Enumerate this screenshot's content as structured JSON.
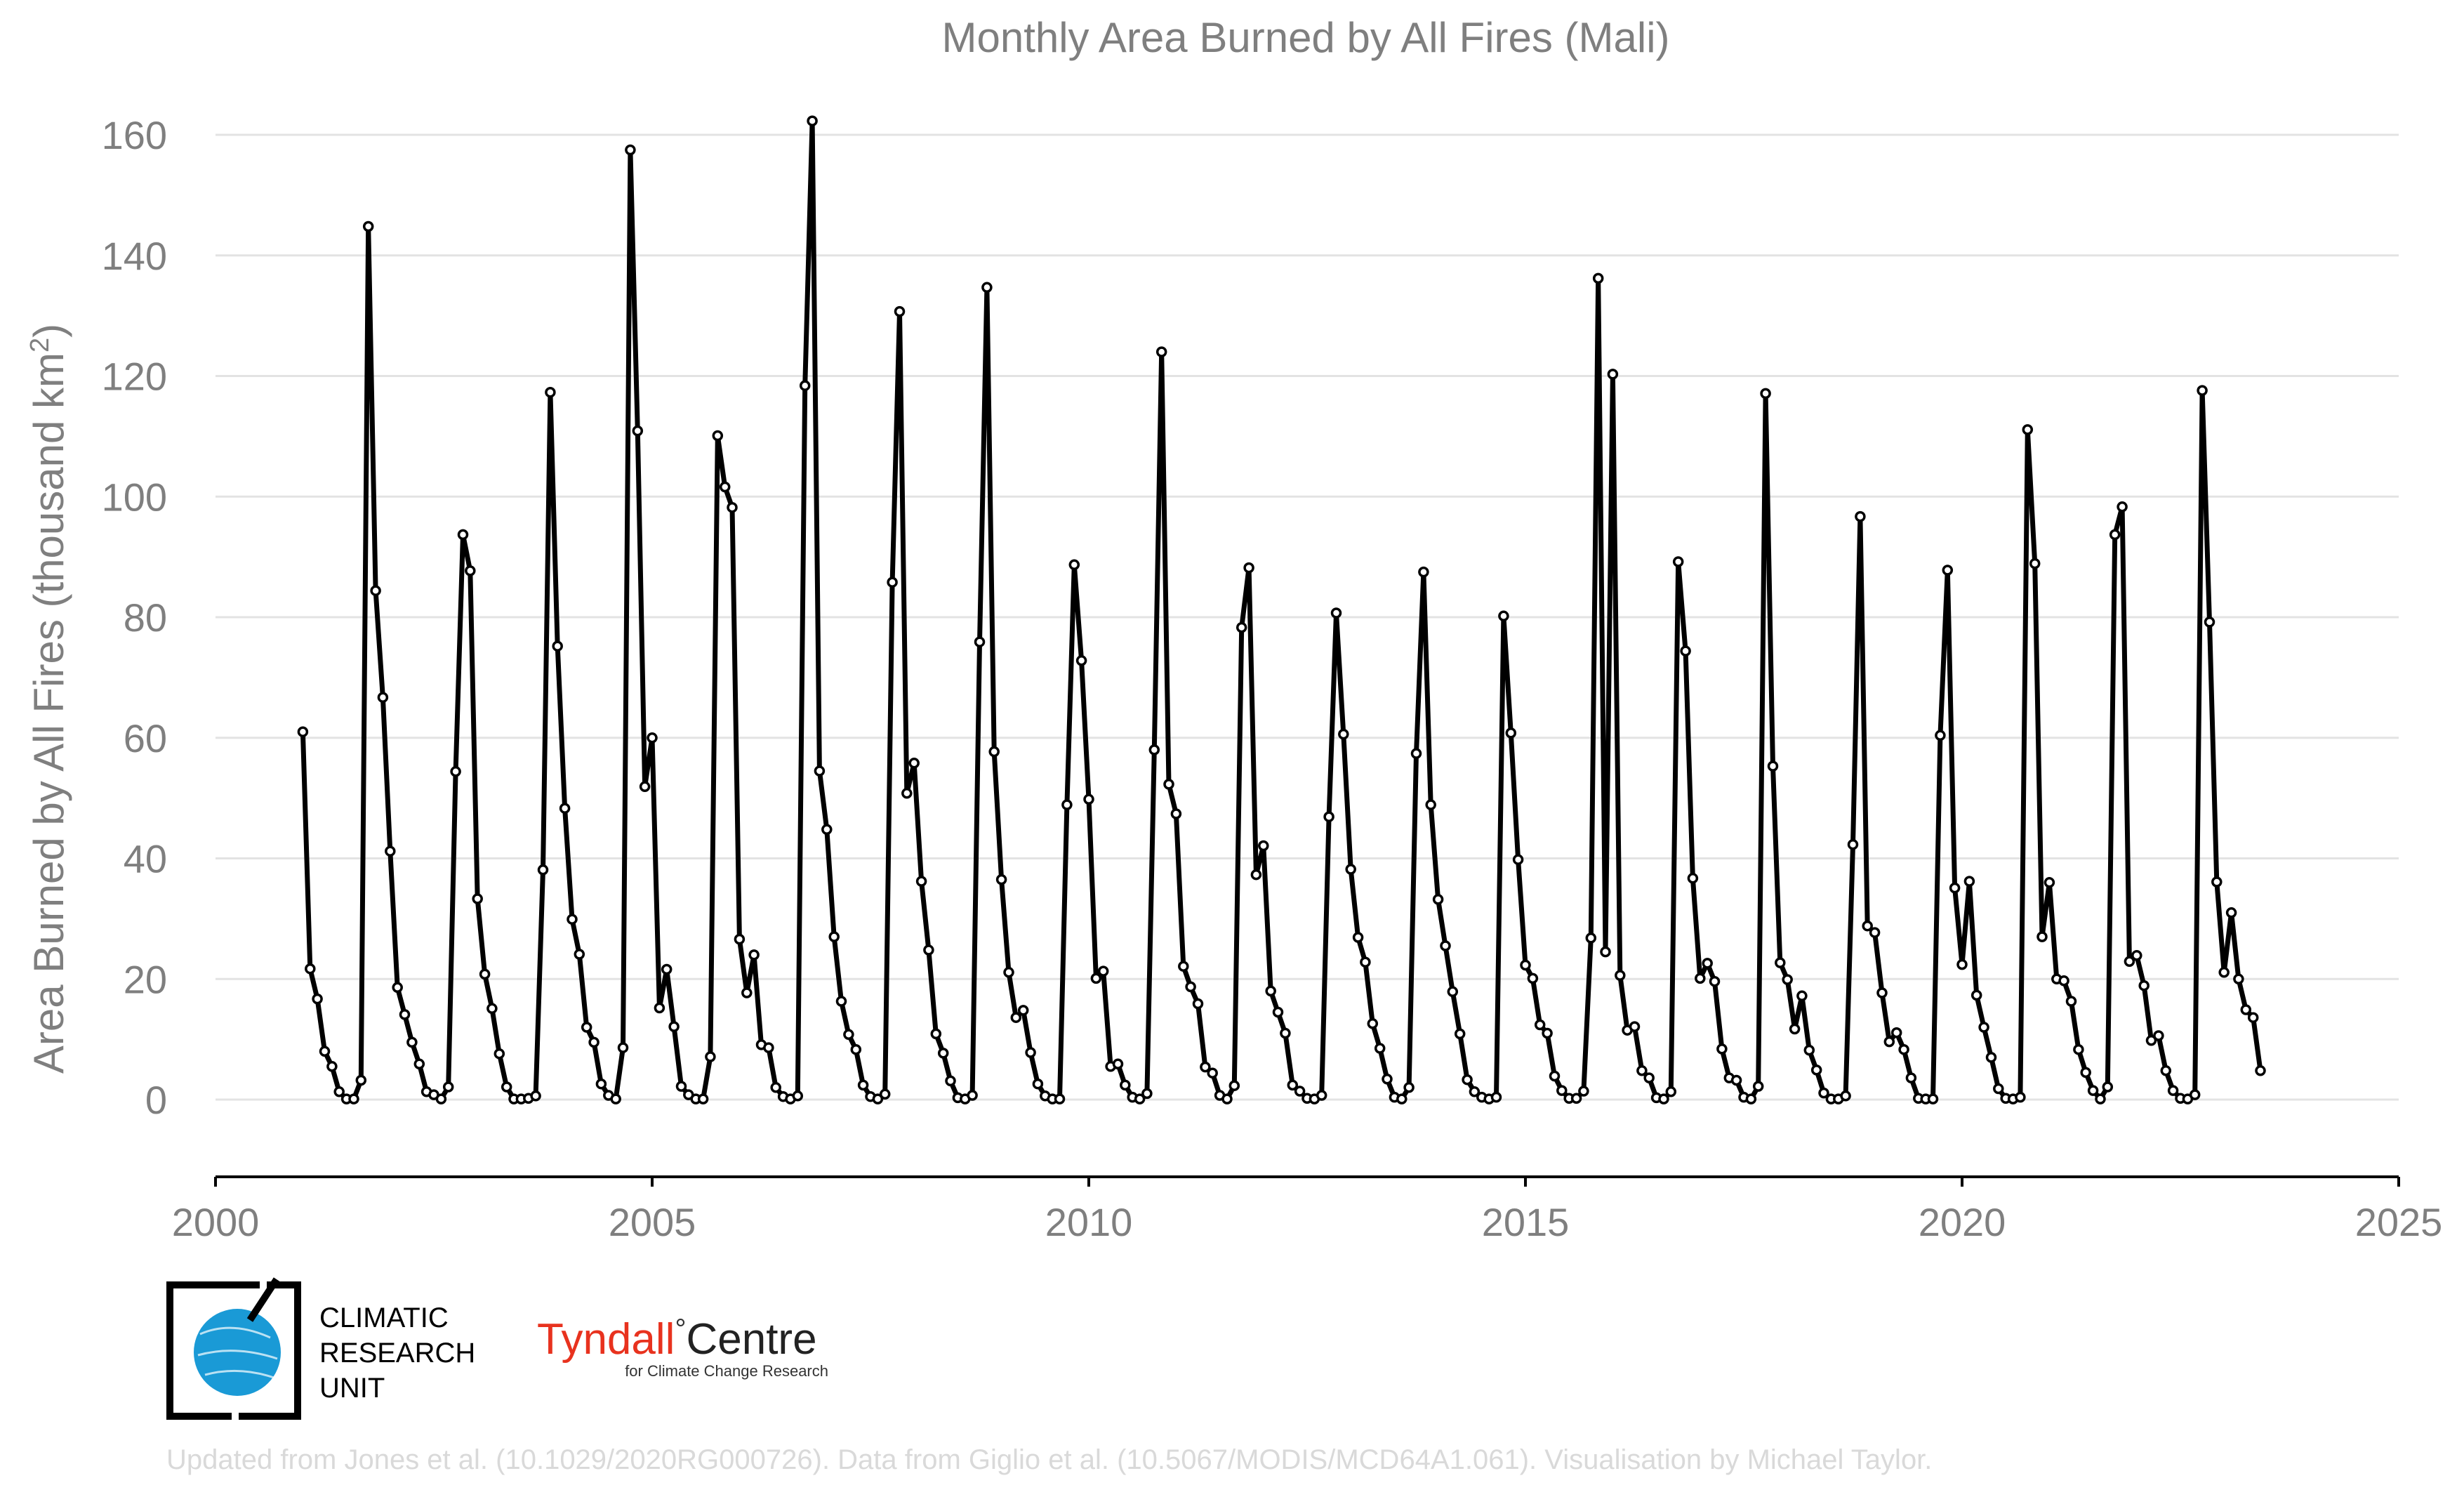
{
  "chart_data": {
    "type": "line",
    "title": "Monthly Area Burned by All Fires (Mali)",
    "xlabel": "",
    "ylabel": "Area Burned by All Fires (thousand km",
    "ylabel_sup": "2",
    "ylabel_end": ")",
    "xlim": [
      2000,
      2025
    ],
    "ylim": [
      -13,
      165
    ],
    "x_ticks": [
      2000,
      2005,
      2010,
      2015,
      2020,
      2025
    ],
    "y_ticks": [
      0,
      20,
      40,
      60,
      80,
      100,
      120,
      140,
      160
    ],
    "grid": "horizontal",
    "legend": "none",
    "series": [
      {
        "x_start": "2001-01",
        "frequency": "monthly",
        "color": "#000000",
        "values": [
          61,
          21.7,
          16.7,
          8,
          5.5,
          1.3,
          0.1,
          0.1,
          3.2,
          144.8,
          84.4,
          66.7,
          41.2,
          18.6,
          14.1,
          9.5,
          5.9,
          1.3,
          0.8,
          0.1,
          2.1,
          54.4,
          93.7,
          87.7,
          33.3,
          20.8,
          15.1,
          7.6,
          2.1,
          0.1,
          0.1,
          0.2,
          0.6,
          38.1,
          117.3,
          75.2,
          48.3,
          29.9,
          24.1,
          12,
          9.5,
          2.6,
          0.7,
          0.1,
          8.6,
          157.5,
          110.9,
          51.9,
          60,
          15.2,
          21.6,
          12.1,
          2.2,
          0.8,
          0.1,
          0.1,
          7.1,
          110.1,
          101.6,
          98.2,
          26.6,
          17.7,
          24,
          9.1,
          8.6,
          2,
          0.5,
          0.1,
          0.6,
          118.4,
          162.3,
          54.5,
          44.8,
          27,
          16.3,
          10.8,
          8.3,
          2.4,
          0.5,
          0.1,
          0.9,
          85.8,
          130.7,
          50.8,
          55.8,
          36.2,
          24.8,
          10.9,
          7.7,
          3.1,
          0.3,
          0.1,
          0.7,
          75.9,
          134.7,
          57.7,
          36.5,
          21.1,
          13.6,
          14.8,
          7.8,
          2.6,
          0.6,
          0.1,
          0.1,
          48.9,
          88.7,
          72.8,
          49.8,
          20.1,
          21.3,
          5.5,
          5.9,
          2.4,
          0.4,
          0.1,
          1,
          58,
          124,
          52.3,
          47.4,
          22.1,
          18.7,
          15.9,
          5.4,
          4.4,
          0.7,
          0.1,
          2.3,
          78.3,
          88.2,
          37.3,
          42.1,
          18,
          14.5,
          11,
          2.4,
          1.4,
          0.2,
          0.1,
          0.7,
          46.9,
          80.7,
          60.6,
          38.2,
          26.9,
          22.8,
          12.6,
          8.5,
          3.4,
          0.4,
          0.1,
          2,
          57.4,
          87.5,
          48.9,
          33.2,
          25.5,
          17.9,
          10.9,
          3.3,
          1.3,
          0.4,
          0.1,
          0.4,
          80.2,
          60.8,
          39.8,
          22.3,
          20.1,
          12.4,
          11,
          3.9,
          1.5,
          0.2,
          0.2,
          1.4,
          26.8,
          136.2,
          24.5,
          120.3,
          20.6,
          11.5,
          12.1,
          4.8,
          3.6,
          0.3,
          0.1,
          1.3,
          89.2,
          74.4,
          36.7,
          20.1,
          22.6,
          19.6,
          8.4,
          3.6,
          3.2,
          0.4,
          0.1,
          2.2,
          117.1,
          55.3,
          22.7,
          19.9,
          11.7,
          17.2,
          8.2,
          4.9,
          1.1,
          0.1,
          0.1,
          0.6,
          42.3,
          96.7,
          28.8,
          27.7,
          17.7,
          9.6,
          11.1,
          8.3,
          3.6,
          0.2,
          0.1,
          0.1,
          60.4,
          87.8,
          35.1,
          22.4,
          36.2,
          17.3,
          12,
          7,
          1.8,
          0.2,
          0.1,
          0.4,
          111.1,
          88.9,
          27,
          36,
          20,
          19.7,
          16.3,
          8.3,
          4.5,
          1.5,
          0.1,
          2.1,
          93.7,
          98.3,
          22.9,
          23.9,
          18.9,
          9.8,
          10.6,
          4.8,
          1.5,
          0.2,
          0.1,
          0.8,
          117.6,
          79.2,
          36.1,
          21.1,
          31,
          20,
          14.9,
          13.6,
          4.8
        ]
      }
    ]
  },
  "logos": {
    "cru_line1": "CLIMATIC",
    "cru_line2": "RESEARCH",
    "cru_line3": "UNIT",
    "tyndall_name": "Tyndall",
    "tyndall_degree": "°",
    "tyndall_centre": "Centre",
    "tyndall_sub": "for Climate Change Research"
  },
  "footer": {
    "credit": "Updated from Jones et al. (10.1029/2020RG000726). Data from Giglio et al. (10.5067/MODIS/MCD64A1.061). Visualisation by Michael Taylor."
  },
  "colors": {
    "line": "#000000",
    "grid": "#e3e3e3",
    "text": "#7f7f7f",
    "cru_globe": "#1a9ad6",
    "tyndall_red": "#e8321e"
  }
}
